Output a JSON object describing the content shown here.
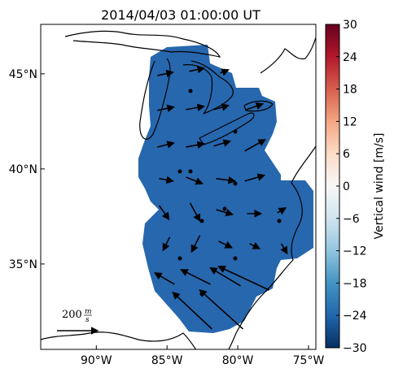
{
  "map": {
    "title": "2014/04/03 01:00:00 UT",
    "xlim": [
      -93.93,
      -74.48
    ],
    "ylim": [
      30.51,
      47.6
    ],
    "xticks": [
      {
        "value": -90,
        "label": "90°W"
      },
      {
        "value": -85,
        "label": "85°W"
      },
      {
        "value": -80,
        "label": "80°W"
      },
      {
        "value": -75,
        "label": "75°W"
      }
    ],
    "yticks": [
      {
        "value": 35,
        "label": "35°N"
      },
      {
        "value": 40,
        "label": "40°N"
      },
      {
        "value": 45,
        "label": "45°N"
      }
    ],
    "field_color": "#2767ae",
    "vector_color": "#000000",
    "vectors": [
      {
        "lon": -85.68,
        "lat": 44.91,
        "u": 76,
        "v": 16
      },
      {
        "lon": -83.43,
        "lat": 45.13,
        "u": 72,
        "v": 16
      },
      {
        "lon": -81.24,
        "lat": 45.04,
        "u": 40,
        "v": 16
      },
      {
        "lon": -85.68,
        "lat": 43.08,
        "u": 80,
        "v": 16
      },
      {
        "lon": -83.66,
        "lat": 43.12,
        "u": 88,
        "v": 16
      },
      {
        "lon": -81.7,
        "lat": 43.12,
        "u": 72,
        "v": 20
      },
      {
        "lon": -79.39,
        "lat": 43.12,
        "u": 80,
        "v": 28
      },
      {
        "lon": -85.68,
        "lat": 41.15,
        "u": 80,
        "v": 20
      },
      {
        "lon": -83.66,
        "lat": 41.15,
        "u": 88,
        "v": 16
      },
      {
        "lon": -81.7,
        "lat": 41.2,
        "u": 80,
        "v": 24
      },
      {
        "lon": -79.51,
        "lat": 40.94,
        "u": 100,
        "v": 56
      },
      {
        "lon": -85.56,
        "lat": 39.49,
        "u": 68,
        "v": -12
      },
      {
        "lon": -83.66,
        "lat": 39.57,
        "u": 80,
        "v": -32
      },
      {
        "lon": -81.53,
        "lat": 39.49,
        "u": 92,
        "v": -12
      },
      {
        "lon": -79.51,
        "lat": 39.36,
        "u": 96,
        "v": 28
      },
      {
        "lon": -85.56,
        "lat": 38.08,
        "u": 48,
        "v": -68
      },
      {
        "lon": -83.37,
        "lat": 38.21,
        "u": 48,
        "v": -88
      },
      {
        "lon": -81.53,
        "lat": 37.86,
        "u": 80,
        "v": -24
      },
      {
        "lon": -79.34,
        "lat": 37.65,
        "u": 68,
        "v": 0
      },
      {
        "lon": -77.2,
        "lat": 37.69,
        "u": 40,
        "v": 24
      },
      {
        "lon": -84.81,
        "lat": 36.41,
        "u": -32,
        "v": -64
      },
      {
        "lon": -82.68,
        "lat": 36.5,
        "u": -40,
        "v": -80
      },
      {
        "lon": -81.35,
        "lat": 36.2,
        "u": 64,
        "v": -32
      },
      {
        "lon": -79.16,
        "lat": 36.07,
        "u": 48,
        "v": -24
      },
      {
        "lon": -76.92,
        "lat": 36.07,
        "u": 28,
        "v": -48
      },
      {
        "lon": -84.47,
        "lat": 33.93,
        "u": -96,
        "v": 56
      },
      {
        "lon": -81.93,
        "lat": 33.93,
        "u": -144,
        "v": 72
      },
      {
        "lon": -79.8,
        "lat": 33.85,
        "u": -148,
        "v": 88
      },
      {
        "lon": -77.78,
        "lat": 33.63,
        "u": -248,
        "v": 116
      },
      {
        "lon": -81.82,
        "lat": 31.58,
        "u": -192,
        "v": 180
      },
      {
        "lon": -79.63,
        "lat": 31.58,
        "u": -212,
        "v": 192
      }
    ],
    "reference_arrow": {
      "value": 200,
      "numerator": "m",
      "denominator": "s"
    },
    "colorbar": {
      "label": "Vertical wind [m/s]",
      "lim": [
        -30,
        30
      ],
      "ticks": [
        30,
        24,
        18,
        12,
        6,
        0,
        {
          "value": -6,
          "label": "−6"
        },
        {
          "value": -12,
          "label": "−12"
        },
        {
          "value": -18,
          "label": "−18"
        },
        {
          "value": -24,
          "label": "−24"
        },
        {
          "value": -30,
          "label": "−30"
        }
      ]
    }
  }
}
